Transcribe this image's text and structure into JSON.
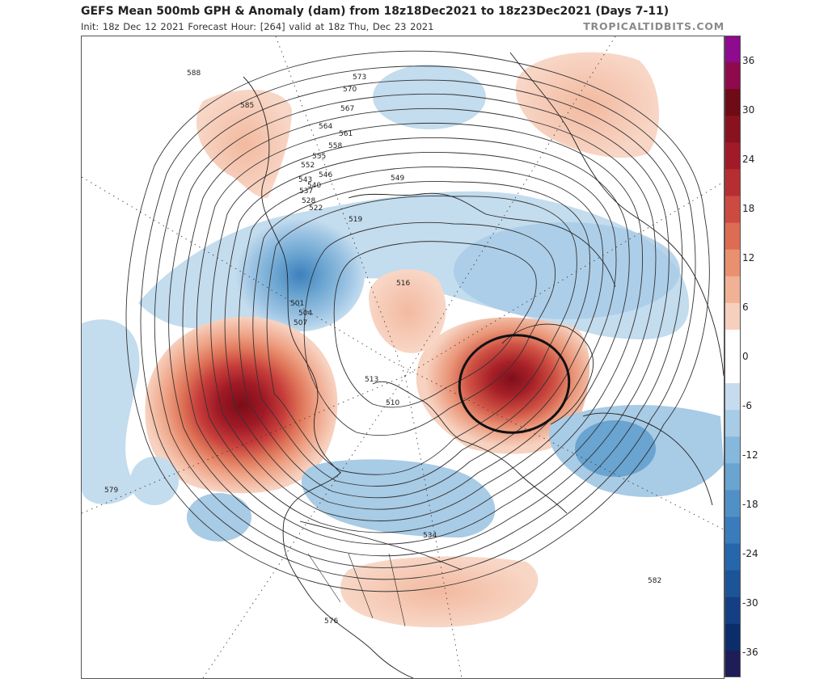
{
  "header": {
    "title": "GEFS Mean 500mb GPH & Anomaly (dam) from 18z18Dec2021 to 18z23Dec2021 (Days 7-11)",
    "subtitle": "Init: 18z Dec 12 2021   Forecast Hour: [264]   valid at 18z Thu, Dec 23 2021",
    "brand": "TROPICALTIDBITS.COM"
  },
  "colorbar": {
    "ticks": [
      "36",
      "30",
      "24",
      "18",
      "12",
      "6",
      "0",
      "-6",
      "-12",
      "-18",
      "-24",
      "-30",
      "-36"
    ],
    "colors": [
      "#1f1d57",
      "#0b2d6b",
      "#153f84",
      "#1c5498",
      "#2666ac",
      "#3a7cbb",
      "#5090c6",
      "#6aa4d1",
      "#86b7dc",
      "#a8cbe6",
      "#c6dcee",
      "#ffffff",
      "#ffffff",
      "#f6d0bd",
      "#f0b195",
      "#e8906f",
      "#dc6c53",
      "#cc4a40",
      "#b72e32",
      "#a11a27",
      "#88121f",
      "#6e0b17",
      "#8e0a4c",
      "#8e0a8e"
    ]
  },
  "contours": [
    "588",
    "585",
    "573",
    "570",
    "567",
    "564",
    "561",
    "558",
    "555",
    "552",
    "549",
    "546",
    "543",
    "540",
    "537",
    "534",
    "528",
    "522",
    "519",
    "516",
    "513",
    "510",
    "507",
    "504",
    "501",
    "582",
    "579",
    "576"
  ],
  "annotation": {
    "circle": "highlighted positive anomaly ring"
  }
}
